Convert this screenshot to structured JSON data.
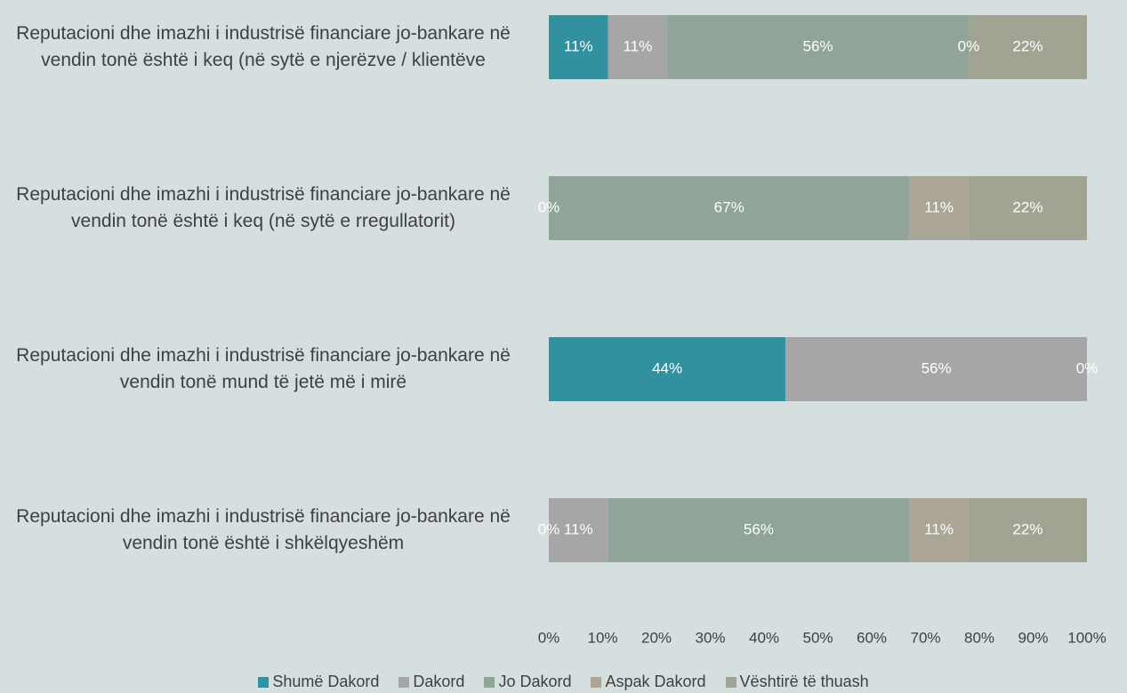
{
  "chart_data": {
    "type": "bar",
    "orientation": "horizontal",
    "stacked": true,
    "categories": [
      "Reputacioni dhe imazhi i industrisë financiare jo-bankare në vendin tonë është i keq (në sytë e njerëzve / klientëve",
      "Reputacioni dhe imazhi i industrisë financiare jo-bankare në vendin tonë është i keq (në sytë e rregullatorit)",
      "Reputacioni dhe imazhi i industrisë financiare jo-bankare në vendin tonë mund të jetë më i mirë",
      "Reputacioni dhe imazhi i industrisë financiare jo-bankare në vendin tonë është i shkëlqyeshëm"
    ],
    "series": [
      {
        "name": "Shumë Dakord",
        "color": "#31919f",
        "values": [
          11,
          0,
          44,
          0
        ],
        "value_labels": [
          "11%",
          "0%",
          "44%",
          "0%"
        ]
      },
      {
        "name": "Dakord",
        "color": "#a6a6a6",
        "values": [
          11,
          0,
          56,
          11
        ],
        "value_labels": [
          "11%",
          null,
          "56%",
          "11%"
        ]
      },
      {
        "name": "Jo Dakord",
        "color": "#90a49a",
        "values": [
          56,
          67,
          0,
          56
        ],
        "value_labels": [
          "56%",
          "67%",
          null,
          "56%"
        ]
      },
      {
        "name": "Aspak Dakord",
        "color": "#aba696",
        "values": [
          0,
          11,
          0,
          11
        ],
        "value_labels": [
          "0%",
          "11%",
          null,
          "11%"
        ]
      },
      {
        "name": "Vështirë të thuash",
        "color": "#a2a493",
        "values": [
          22,
          22,
          0,
          22
        ],
        "value_labels": [
          "22%",
          "22%",
          "0%",
          "22%"
        ]
      }
    ],
    "xlim": [
      0,
      100
    ],
    "xticks": [
      {
        "value": 0,
        "label": "0%"
      },
      {
        "value": 10,
        "label": "10%"
      },
      {
        "value": 20,
        "label": "20%"
      },
      {
        "value": 30,
        "label": "30%"
      },
      {
        "value": 40,
        "label": "40%"
      },
      {
        "value": 50,
        "label": "50%"
      },
      {
        "value": 60,
        "label": "60%"
      },
      {
        "value": 70,
        "label": "70%"
      },
      {
        "value": 80,
        "label": "80%"
      },
      {
        "value": 90,
        "label": "90%"
      },
      {
        "value": 100,
        "label": "100%"
      }
    ],
    "grid": false,
    "legend": "bottom"
  }
}
